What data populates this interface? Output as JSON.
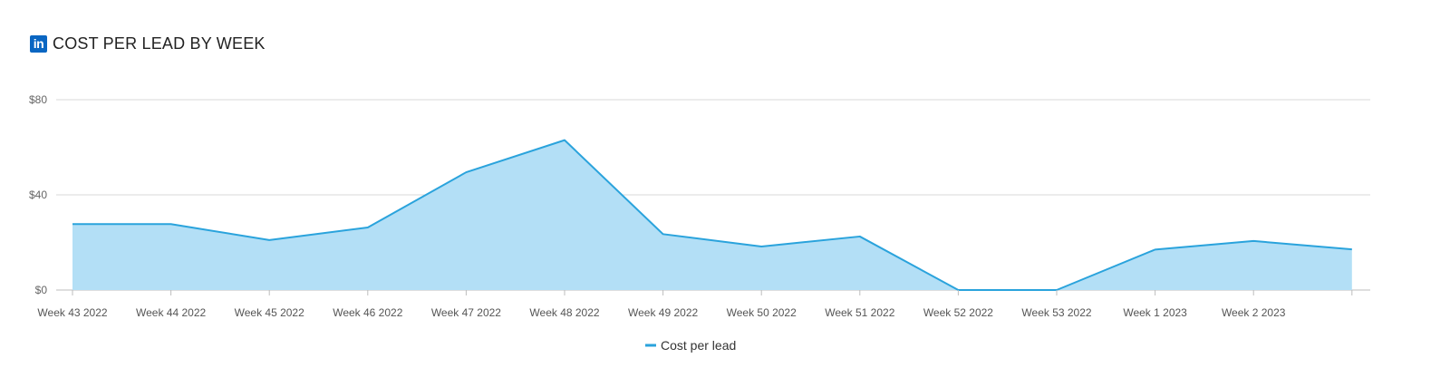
{
  "header": {
    "logo_text": "in",
    "logo_icon": "linkedin-icon",
    "title": "COST PER LEAD BY WEEK"
  },
  "colors": {
    "line": "#2aa3dc",
    "fill": "#b3dff6",
    "grid": "#d9d9d9",
    "axis": "#bdbdbd",
    "logo": "#0a66c2"
  },
  "chart_data": {
    "type": "area",
    "title": "COST PER LEAD BY WEEK",
    "categories": [
      "Week 43 2022",
      "Week 44 2022",
      "Week 45 2022",
      "Week 46 2022",
      "Week 47 2022",
      "Week 48 2022",
      "Week 49 2022",
      "Week 50 2022",
      "Week 51 2022",
      "Week 52 2022",
      "Week 53 2022",
      "Week 1 2023",
      "Week 2 2023",
      ""
    ],
    "series": [
      {
        "name": "Cost per lead",
        "values": [
          27.7,
          27.7,
          21.0,
          26.3,
          49.5,
          63.0,
          23.5,
          18.3,
          22.5,
          0,
          0,
          17.0,
          20.6,
          17.1
        ]
      }
    ],
    "y_ticks": [
      "$0",
      "$40",
      "$80"
    ],
    "y_tick_values": [
      0,
      40,
      80
    ],
    "ylim": [
      0,
      80
    ],
    "grid": true,
    "legend": "bottom-center",
    "xlabel": "",
    "ylabel": ""
  }
}
